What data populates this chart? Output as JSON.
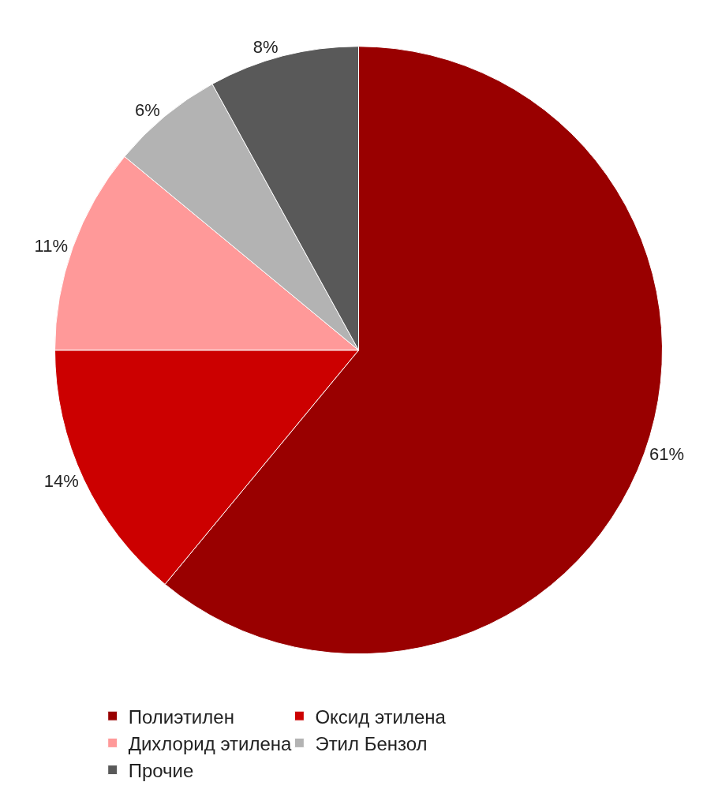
{
  "chart_data": {
    "type": "pie",
    "categories": [
      "Полиэтилен",
      "Оксид этилена",
      "Дихлорид этилена",
      "Этил Бензол",
      "Прочие"
    ],
    "values": [
      61,
      14,
      11,
      6,
      8
    ],
    "value_labels": [
      "61%",
      "14%",
      "11%",
      "6%",
      "8%"
    ],
    "colors": [
      "#990000",
      "#cc0000",
      "#ff9999",
      "#b3b3b3",
      "#595959"
    ],
    "legend": "bottom"
  }
}
